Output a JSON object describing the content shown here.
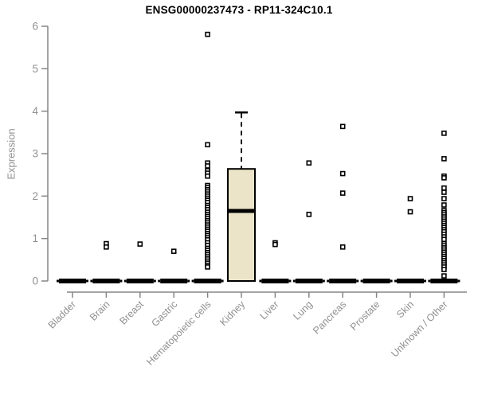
{
  "chart_data": {
    "type": "boxplot",
    "title": "ENSG00000237473 - RP11-324C10.1",
    "ylabel": "Expression",
    "xlabel": "",
    "ylim": [
      0,
      6
    ],
    "yticks": [
      0,
      1,
      2,
      3,
      4,
      5,
      6
    ],
    "grid": false,
    "legend": false,
    "x_label_rotation": 45,
    "categories": [
      "Bladder",
      "Brain",
      "Breast",
      "Gastric",
      "Hematopoietic cells",
      "Kidney",
      "Liver",
      "Lung",
      "Pancreas",
      "Prostate",
      "Skin",
      "Unknown / Other"
    ],
    "boxes": [
      {
        "category": "Bladder",
        "q1": 0,
        "median": 0,
        "q3": 0,
        "whisker_low": 0,
        "whisker_high": 0,
        "outliers": []
      },
      {
        "category": "Brain",
        "q1": 0,
        "median": 0,
        "q3": 0,
        "whisker_low": 0,
        "whisker_high": 0,
        "outliers": [
          0.88,
          0.8
        ]
      },
      {
        "category": "Breast",
        "q1": 0,
        "median": 0,
        "q3": 0,
        "whisker_low": 0,
        "whisker_high": 0,
        "outliers": [
          0.87
        ]
      },
      {
        "category": "Gastric",
        "q1": 0,
        "median": 0,
        "q3": 0,
        "whisker_low": 0,
        "whisker_high": 0,
        "outliers": [
          0.7
        ]
      },
      {
        "category": "Hematopoietic cells",
        "q1": 0,
        "median": 0,
        "q3": 0,
        "whisker_low": 0,
        "whisker_high": 0,
        "outliers": [
          5.81,
          3.21,
          2.78,
          2.71,
          2.6,
          2.54,
          2.47,
          2.25,
          2.2,
          2.15,
          2.1,
          2.05,
          2.0,
          1.95,
          1.9,
          1.85,
          1.78,
          1.73,
          1.68,
          1.62,
          1.57,
          1.52,
          1.47,
          1.42,
          1.37,
          1.32,
          1.27,
          1.22,
          1.17,
          1.12,
          1.07,
          1.02,
          0.97,
          0.9,
          0.84,
          0.77,
          0.72,
          0.67,
          0.62,
          0.57,
          0.52,
          0.47,
          0.42,
          0.37,
          0.33
        ]
      },
      {
        "category": "Kidney",
        "q1": 0,
        "median": 1.65,
        "q3": 2.64,
        "whisker_low": 0,
        "whisker_high": 3.97,
        "outliers": []
      },
      {
        "category": "Liver",
        "q1": 0,
        "median": 0,
        "q3": 0,
        "whisker_low": 0,
        "whisker_high": 0,
        "outliers": [
          0.9,
          0.86
        ]
      },
      {
        "category": "Lung",
        "q1": 0,
        "median": 0,
        "q3": 0,
        "whisker_low": 0,
        "whisker_high": 0,
        "outliers": [
          2.78,
          1.57
        ]
      },
      {
        "category": "Pancreas",
        "q1": 0,
        "median": 0,
        "q3": 0,
        "whisker_low": 0,
        "whisker_high": 0,
        "outliers": [
          3.64,
          2.53,
          2.07,
          0.8
        ]
      },
      {
        "category": "Prostate",
        "q1": 0,
        "median": 0,
        "q3": 0,
        "whisker_low": 0,
        "whisker_high": 0,
        "outliers": []
      },
      {
        "category": "Skin",
        "q1": 0,
        "median": 0,
        "q3": 0,
        "whisker_low": 0,
        "whisker_high": 0,
        "outliers": [
          1.94,
          1.63
        ]
      },
      {
        "category": "Unknown / Other",
        "q1": 0,
        "median": 0,
        "q3": 0,
        "whisker_low": 0,
        "whisker_high": 0,
        "outliers": [
          3.48,
          2.88,
          2.47,
          2.43,
          2.19,
          2.09,
          1.94,
          1.79,
          1.66,
          1.61,
          1.56,
          1.51,
          1.46,
          1.41,
          1.36,
          1.31,
          1.26,
          1.21,
          1.16,
          1.1,
          1.04,
          0.98,
          0.88,
          0.83,
          0.78,
          0.73,
          0.68,
          0.63,
          0.58,
          0.53,
          0.48,
          0.43,
          0.38,
          0.33,
          0.27,
          0.12
        ]
      }
    ],
    "colors": {
      "box_fill": "#EBE4C9",
      "box_border": "#000000",
      "median": "#000000",
      "outlier": "#000000",
      "axis": "#858585",
      "tick_text": "#909090",
      "title_text": "#000000",
      "background": "#FFFFFF"
    }
  }
}
